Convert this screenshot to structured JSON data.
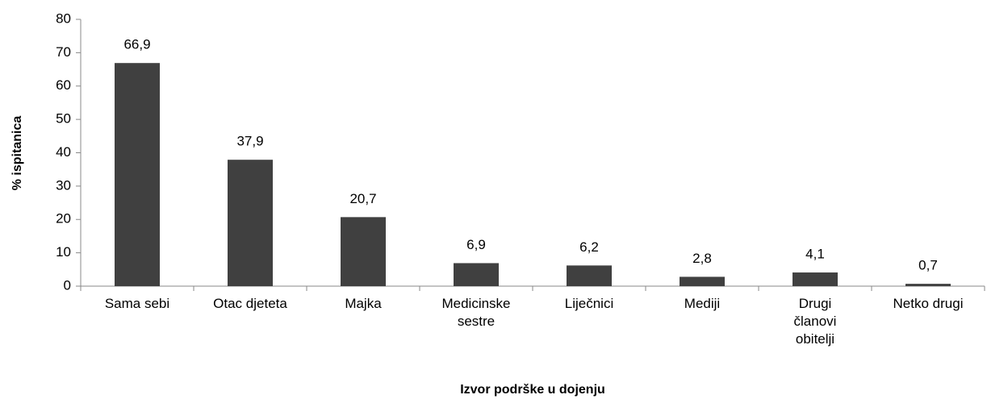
{
  "chart_data": {
    "type": "bar",
    "categories": [
      "Sama sebi",
      "Otac djeteta",
      "Majka",
      "Medicinske sestre",
      "Liječnici",
      "Mediji",
      "Drugi članovi obitelji",
      "Netko drugi"
    ],
    "values": [
      66.9,
      37.9,
      20.7,
      6.9,
      6.2,
      2.8,
      4.1,
      0.7
    ],
    "value_labels": [
      "66,9",
      "37,9",
      "20,7",
      "6,9",
      "6,2",
      "2,8",
      "4,1",
      "0,7"
    ],
    "color": "#404040",
    "ylim": [
      0,
      80
    ],
    "yticks": [
      0,
      10,
      20,
      30,
      40,
      50,
      60,
      70,
      80
    ],
    "y_label": "% ispitanica",
    "x_label": "Izvor podrške u dojenju",
    "grid": false
  }
}
